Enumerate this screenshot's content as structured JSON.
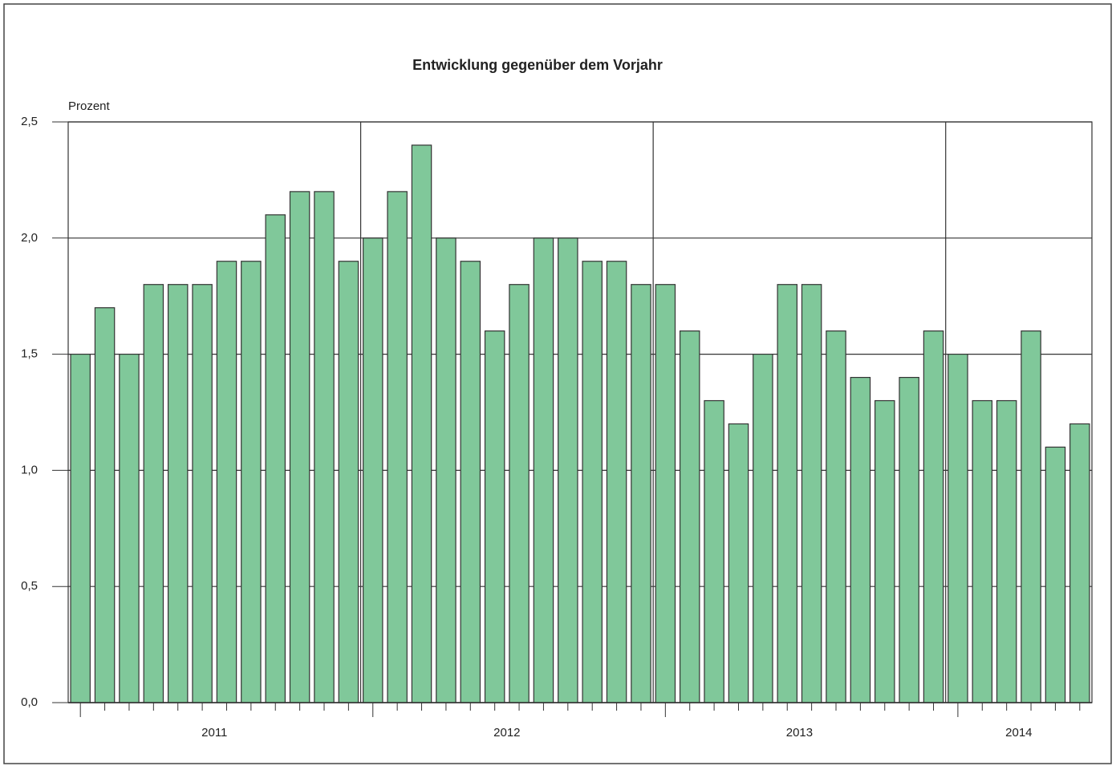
{
  "chart_data": {
    "type": "bar",
    "title": "Entwicklung gegenüber dem Vorjahr",
    "y_label": "Prozent",
    "categories": [
      null,
      null,
      null,
      null,
      null,
      null,
      null,
      null,
      null,
      null,
      null,
      null,
      null,
      null,
      null,
      null,
      null,
      null,
      null,
      null,
      null,
      null,
      null,
      null,
      null,
      null,
      null,
      null,
      null,
      null,
      null,
      null,
      null,
      null,
      null,
      null,
      null,
      null,
      null,
      null,
      null,
      null
    ],
    "values": [
      1.5,
      1.7,
      1.5,
      1.8,
      1.8,
      1.8,
      1.9,
      1.9,
      2.1,
      2.2,
      2.2,
      1.9,
      2.0,
      2.2,
      2.4,
      2.0,
      1.9,
      1.6,
      1.8,
      2.0,
      2.0,
      1.9,
      1.9,
      1.8,
      1.8,
      1.6,
      1.3,
      1.2,
      1.5,
      1.8,
      1.8,
      1.6,
      1.4,
      1.3,
      1.4,
      1.6,
      1.5,
      1.3,
      1.3,
      1.6,
      1.1,
      1.2
    ],
    "x_groups": [
      "2011",
      "2012",
      "2013",
      "2014"
    ],
    "color": "#80c89a",
    "ylim": [
      0,
      2.5
    ],
    "yticks": [
      {
        "value": 0,
        "label": "0,0"
      },
      {
        "value": 0.5,
        "label": "0,5"
      },
      {
        "value": 1,
        "label": "1,0"
      },
      {
        "value": 1.5,
        "label": "1,5"
      },
      {
        "value": 2,
        "label": "2,0"
      },
      {
        "value": 2.5,
        "label": "2,5"
      }
    ],
    "grid": true
  }
}
